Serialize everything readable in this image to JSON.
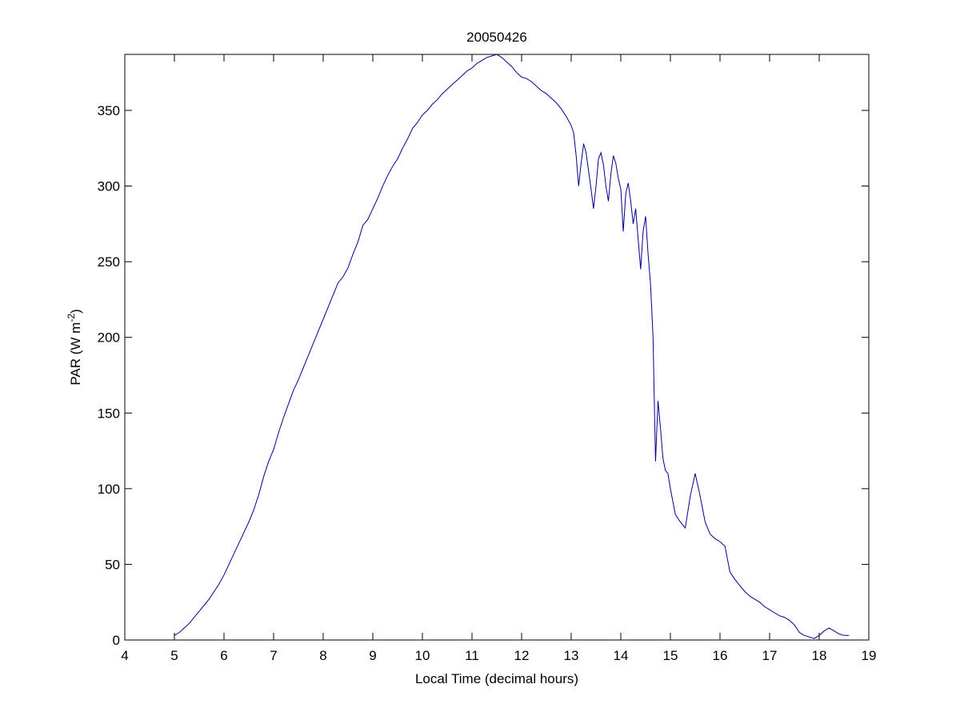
{
  "chart_data": {
    "type": "line",
    "title": "20050426",
    "xlabel": "Local Time (decimal hours)",
    "ylabel": "PAR (W m",
    "ylabel_sup": "-2",
    "ylabel_close": ")",
    "xlim": [
      4,
      19
    ],
    "ylim": [
      0,
      387
    ],
    "xticks": [
      "4",
      "5",
      "6",
      "7",
      "8",
      "9",
      "10",
      "11",
      "12",
      "13",
      "14",
      "15",
      "16",
      "17",
      "18",
      "19"
    ],
    "yticks": [
      "0",
      "50",
      "100",
      "150",
      "200",
      "250",
      "300",
      "350"
    ],
    "grid": false,
    "line_color": "#00008b",
    "series": [
      {
        "x": [
          5.0,
          5.1,
          5.2,
          5.3,
          5.4,
          5.5,
          5.6,
          5.7,
          5.8,
          5.9,
          6.0,
          6.1,
          6.2,
          6.3,
          6.4,
          6.5,
          6.6,
          6.7,
          6.8,
          6.9,
          7.0,
          7.1,
          7.2,
          7.3,
          7.4,
          7.5,
          7.6,
          7.7,
          7.8,
          7.9,
          8.0,
          8.1,
          8.2,
          8.3,
          8.4,
          8.5,
          8.6,
          8.7,
          8.8,
          8.9,
          9.0,
          9.1,
          9.2,
          9.3,
          9.4,
          9.5,
          9.6,
          9.7,
          9.8,
          9.9,
          10.0,
          10.1,
          10.2,
          10.3,
          10.4,
          10.5,
          10.6,
          10.7,
          10.8,
          10.9,
          11.0,
          11.1,
          11.2,
          11.3,
          11.4,
          11.5,
          11.6,
          11.7,
          11.8,
          11.9,
          12.0,
          12.1,
          12.2,
          12.3,
          12.4,
          12.5,
          12.6,
          12.7,
          12.8,
          12.9,
          13.0,
          13.05,
          13.1,
          13.15,
          13.2,
          13.25,
          13.3,
          13.35,
          13.4,
          13.45,
          13.5,
          13.55,
          13.6,
          13.65,
          13.7,
          13.75,
          13.8,
          13.85,
          13.9,
          13.95,
          14.0,
          14.05,
          14.1,
          14.15,
          14.2,
          14.25,
          14.3,
          14.35,
          14.4,
          14.45,
          14.5,
          14.55,
          14.6,
          14.65,
          14.7,
          14.75,
          14.8,
          14.85,
          14.9,
          14.95,
          15.0,
          15.1,
          15.2,
          15.3,
          15.4,
          15.5,
          15.6,
          15.7,
          15.8,
          15.9,
          16.0,
          16.1,
          16.2,
          16.3,
          16.4,
          16.5,
          16.6,
          16.7,
          16.8,
          16.9,
          17.0,
          17.1,
          17.2,
          17.3,
          17.4,
          17.5,
          17.6,
          17.7,
          17.8,
          17.9,
          18.0,
          18.1,
          18.2,
          18.3,
          18.4,
          18.5,
          18.6
        ],
        "y": [
          3,
          5,
          8,
          11,
          15,
          19,
          23,
          27,
          32,
          37,
          43,
          50,
          57,
          64,
          71,
          78,
          86,
          96,
          108,
          118,
          126,
          137,
          147,
          156,
          165,
          172,
          180,
          188,
          196,
          204,
          212,
          220,
          228,
          236,
          240,
          246,
          255,
          263,
          274,
          278,
          285,
          292,
          300,
          307,
          313,
          318,
          325,
          331,
          338,
          342,
          347,
          350,
          354,
          357,
          361,
          364,
          367,
          370,
          373,
          376,
          378,
          381,
          383,
          385,
          386,
          387,
          385,
          382,
          379,
          375,
          372,
          371,
          369,
          366,
          363,
          361,
          358,
          355,
          351,
          346,
          340,
          335,
          320,
          300,
          315,
          328,
          322,
          310,
          298,
          285,
          300,
          318,
          322,
          314,
          300,
          290,
          308,
          320,
          315,
          305,
          298,
          270,
          295,
          302,
          290,
          275,
          285,
          265,
          245,
          270,
          280,
          255,
          235,
          200,
          118,
          158,
          140,
          120,
          112,
          110,
          100,
          83,
          78,
          74,
          95,
          110,
          95,
          78,
          70,
          67,
          65,
          62,
          45,
          40,
          36,
          32,
          29,
          27,
          25,
          22,
          20,
          18,
          16,
          15,
          13,
          10,
          5,
          3,
          2,
          1,
          3,
          6,
          8,
          6,
          4,
          3,
          3
        ]
      }
    ]
  }
}
